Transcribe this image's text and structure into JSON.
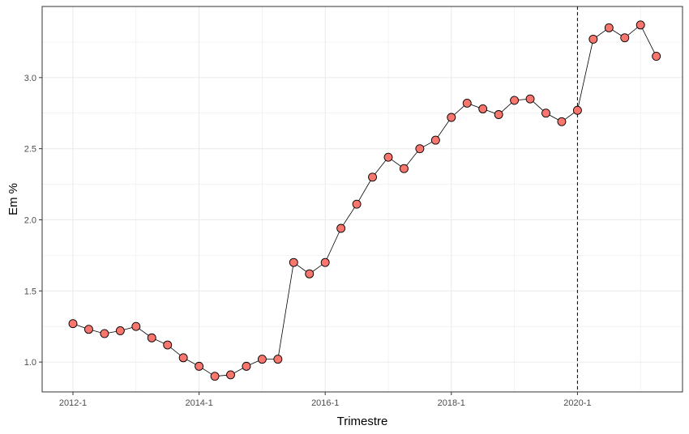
{
  "chart_data": {
    "type": "line",
    "title": "",
    "xlabel": "Trimestre",
    "ylabel": "Em %",
    "x_tick_labels": [
      "2012-1",
      "2014-1",
      "2016-1",
      "2018-1",
      "2020-1"
    ],
    "y_tick_labels": [
      "1.0",
      "1.5",
      "2.0",
      "2.5",
      "3.0"
    ],
    "y_ticks": [
      1.0,
      1.5,
      2.0,
      2.5,
      3.0
    ],
    "ylim": [
      0.79,
      3.5
    ],
    "grid": true,
    "vertical_reference_line": "2020-1",
    "x": [
      "2012-1",
      "2012-2",
      "2012-3",
      "2012-4",
      "2013-1",
      "2013-2",
      "2013-3",
      "2013-4",
      "2014-1",
      "2014-2",
      "2014-3",
      "2014-4",
      "2015-1",
      "2015-2",
      "2015-3",
      "2015-4",
      "2016-1",
      "2016-2",
      "2016-3",
      "2016-4",
      "2017-1",
      "2017-2",
      "2017-3",
      "2017-4",
      "2018-1",
      "2018-2",
      "2018-3",
      "2018-4",
      "2019-1",
      "2019-2",
      "2019-3",
      "2019-4",
      "2020-1",
      "2020-2",
      "2020-3",
      "2020-4",
      "2021-1",
      "2021-2"
    ],
    "series": [
      {
        "values": [
          1.27,
          1.23,
          1.2,
          1.22,
          1.25,
          1.17,
          1.12,
          1.03,
          0.97,
          0.9,
          0.91,
          0.97,
          1.02,
          1.02,
          1.7,
          1.62,
          1.7,
          1.94,
          2.11,
          2.3,
          2.44,
          2.36,
          2.5,
          2.56,
          2.72,
          2.82,
          2.78,
          2.74,
          2.84,
          2.85,
          2.75,
          2.69,
          2.77,
          3.27,
          3.35,
          3.28,
          3.37,
          3.15
        ]
      }
    ],
    "colors": {
      "point_fill": "#f8766d",
      "point_stroke": "#000000",
      "line": "#000000",
      "grid": "#ebebeb",
      "panel_border": "#333333"
    }
  }
}
